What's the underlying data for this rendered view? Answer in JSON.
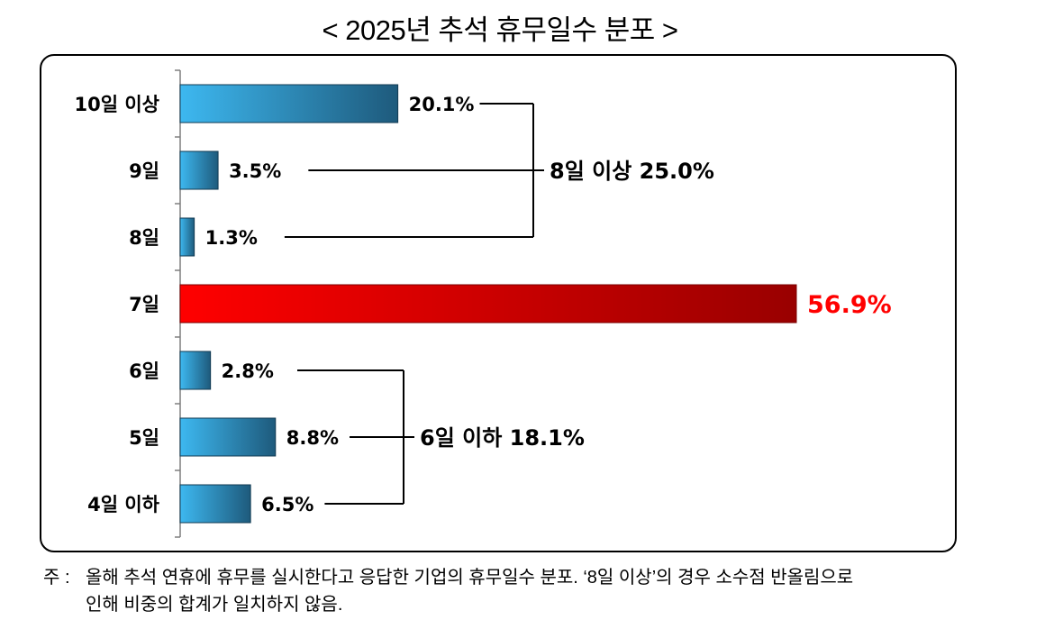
{
  "title": "< 2025년 추석 휴무일수 분포 >",
  "chart_data": {
    "type": "bar",
    "orientation": "horizontal",
    "title": "< 2025년 추석 휴무일수 분포 >",
    "categories": [
      "10일 이상",
      "9일",
      "8일",
      "7일",
      "6일",
      "5일",
      "4일 이하"
    ],
    "values": [
      20.1,
      3.5,
      1.3,
      56.9,
      2.8,
      8.8,
      6.5
    ],
    "value_labels": [
      "20.1%",
      "3.5%",
      "1.3%",
      "56.9%",
      "2.8%",
      "8.8%",
      "6.5%"
    ],
    "highlight_category": "7일",
    "groups": [
      {
        "label": "8일 이상 25.0%",
        "members": [
          "10일 이상",
          "9일",
          "8일"
        ]
      },
      {
        "label": "6일 이하 18.1%",
        "members": [
          "6일",
          "5일",
          "4일 이하"
        ]
      }
    ],
    "colors": {
      "bar_light": "#3db8f0",
      "bar_dark": "#1e5a7c",
      "highlight_light": "#ff0000",
      "highlight_dark": "#990000",
      "highlight_text": "#ff0000"
    },
    "xlim": [
      0,
      60
    ],
    "grid": false
  },
  "note": {
    "prefix": "주 :",
    "line1": "올해 추석 연휴에 휴무를 실시한다고 응답한 기업의 휴무일수 분포. ‘8일 이상’의 경우 소수점 반올림으로",
    "line2": "인해 비중의 합계가 일치하지 않음."
  }
}
